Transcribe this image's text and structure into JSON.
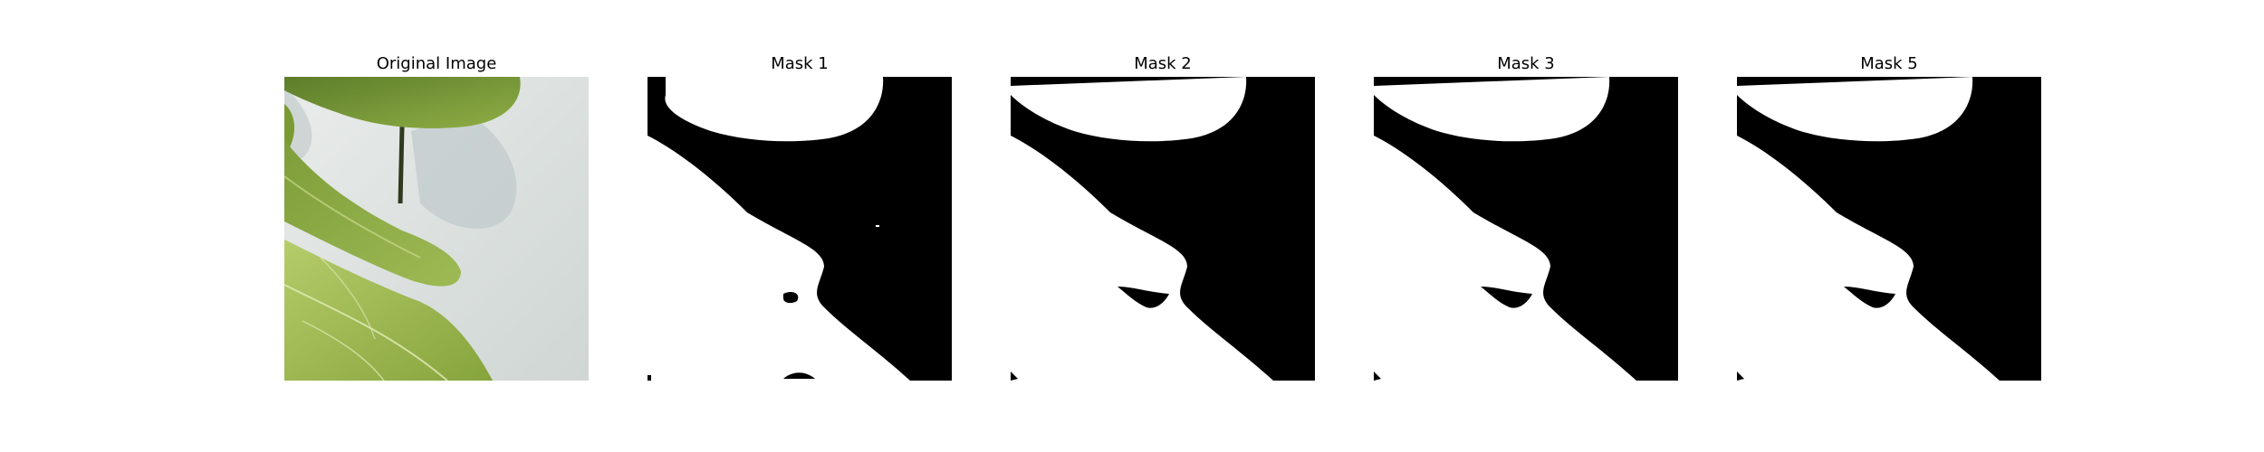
{
  "panels": [
    {
      "title": "Original Image"
    },
    {
      "title": "Mask 1"
    },
    {
      "title": "Mask 2"
    },
    {
      "title": "Mask 3"
    },
    {
      "title": "Mask 5"
    }
  ],
  "colors": {
    "background": "#ffffff",
    "mask_foreground": "#ffffff",
    "mask_background": "#000000",
    "leaf_dark": "#6b8a2e",
    "leaf_light": "#a8c25a",
    "backdrop": "#dfe5e2",
    "shadow": "#b9c4c8"
  }
}
